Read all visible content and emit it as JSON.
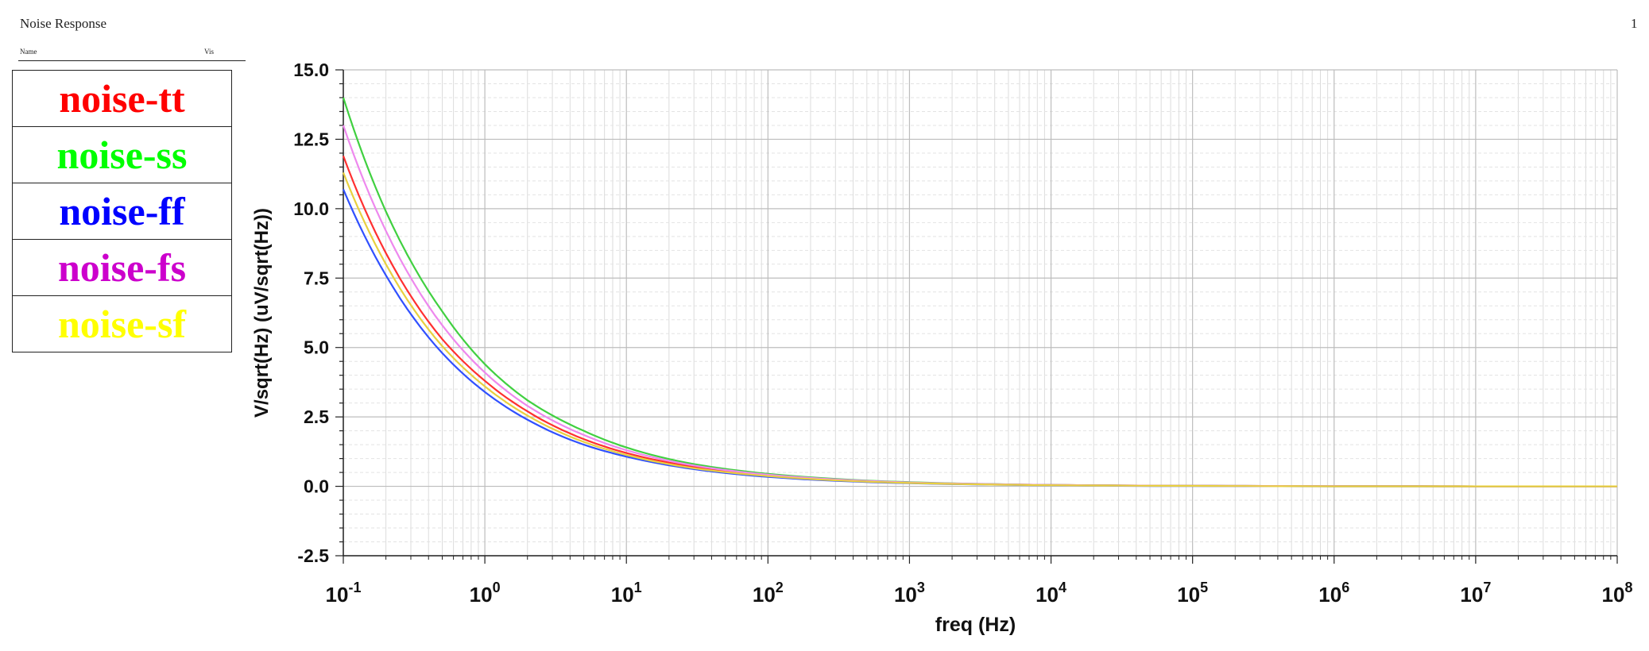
{
  "header": {
    "title": "Noise Response",
    "page_number": "1"
  },
  "legend": {
    "header_name": "Name",
    "header_vis": "Vis",
    "items": [
      {
        "label": "noise-tt",
        "color": "#ff0000"
      },
      {
        "label": "noise-ss",
        "color": "#00ff00"
      },
      {
        "label": "noise-ff",
        "color": "#0000ff"
      },
      {
        "label": "noise-fs",
        "color": "#cc00cc"
      },
      {
        "label": "noise-sf",
        "color": "#ffff00"
      }
    ]
  },
  "chart_data": {
    "type": "line",
    "title": "",
    "xlabel": "freq (Hz)",
    "ylabel": "V/sqrt(Hz) (uV/sqrt(Hz))",
    "xscale": "log",
    "xlim": [
      0.1,
      100000000
    ],
    "ylim": [
      -2.5,
      15.0
    ],
    "grid": true,
    "yticks": [
      "15.0",
      "12.5",
      "10.0",
      "7.5",
      "5.0",
      "2.5",
      "0.0",
      "-2.5"
    ],
    "xticks": [
      {
        "base": "10",
        "exp": "-1"
      },
      {
        "base": "10",
        "exp": "0"
      },
      {
        "base": "10",
        "exp": "1"
      },
      {
        "base": "10",
        "exp": "2"
      },
      {
        "base": "10",
        "exp": "3"
      },
      {
        "base": "10",
        "exp": "4"
      },
      {
        "base": "10",
        "exp": "5"
      },
      {
        "base": "10",
        "exp": "6"
      },
      {
        "base": "10",
        "exp": "7"
      },
      {
        "base": "10",
        "exp": "8"
      }
    ],
    "x": [
      0.1,
      0.2,
      0.5,
      1,
      2,
      5,
      10,
      30,
      100,
      1000,
      10000,
      100000,
      1000000,
      10000000,
      100000000
    ],
    "series": [
      {
        "name": "noise-tt",
        "color": "#ff3030",
        "values": [
          11.9,
          8.4,
          5.3,
          3.8,
          2.7,
          1.7,
          1.2,
          0.7,
          0.4,
          0.13,
          0.05,
          0.02,
          0.01,
          0.0,
          0.0
        ]
      },
      {
        "name": "noise-ss",
        "color": "#40d040",
        "values": [
          14.0,
          9.9,
          6.3,
          4.4,
          3.1,
          2.0,
          1.4,
          0.8,
          0.45,
          0.15,
          0.05,
          0.02,
          0.01,
          0.0,
          0.0
        ]
      },
      {
        "name": "noise-ff",
        "color": "#3050ff",
        "values": [
          10.7,
          7.6,
          4.8,
          3.4,
          2.4,
          1.5,
          1.07,
          0.62,
          0.34,
          0.11,
          0.04,
          0.01,
          0.0,
          0.0,
          0.0
        ]
      },
      {
        "name": "noise-fs",
        "color": "#ee88ee",
        "values": [
          13.0,
          9.2,
          5.8,
          4.1,
          2.9,
          1.85,
          1.3,
          0.75,
          0.42,
          0.14,
          0.05,
          0.02,
          0.01,
          0.0,
          0.0
        ]
      },
      {
        "name": "noise-sf",
        "color": "#e8d040",
        "values": [
          11.3,
          8.0,
          5.05,
          3.6,
          2.55,
          1.6,
          1.13,
          0.65,
          0.37,
          0.12,
          0.04,
          0.015,
          0.0,
          0.0,
          0.0
        ]
      }
    ]
  }
}
